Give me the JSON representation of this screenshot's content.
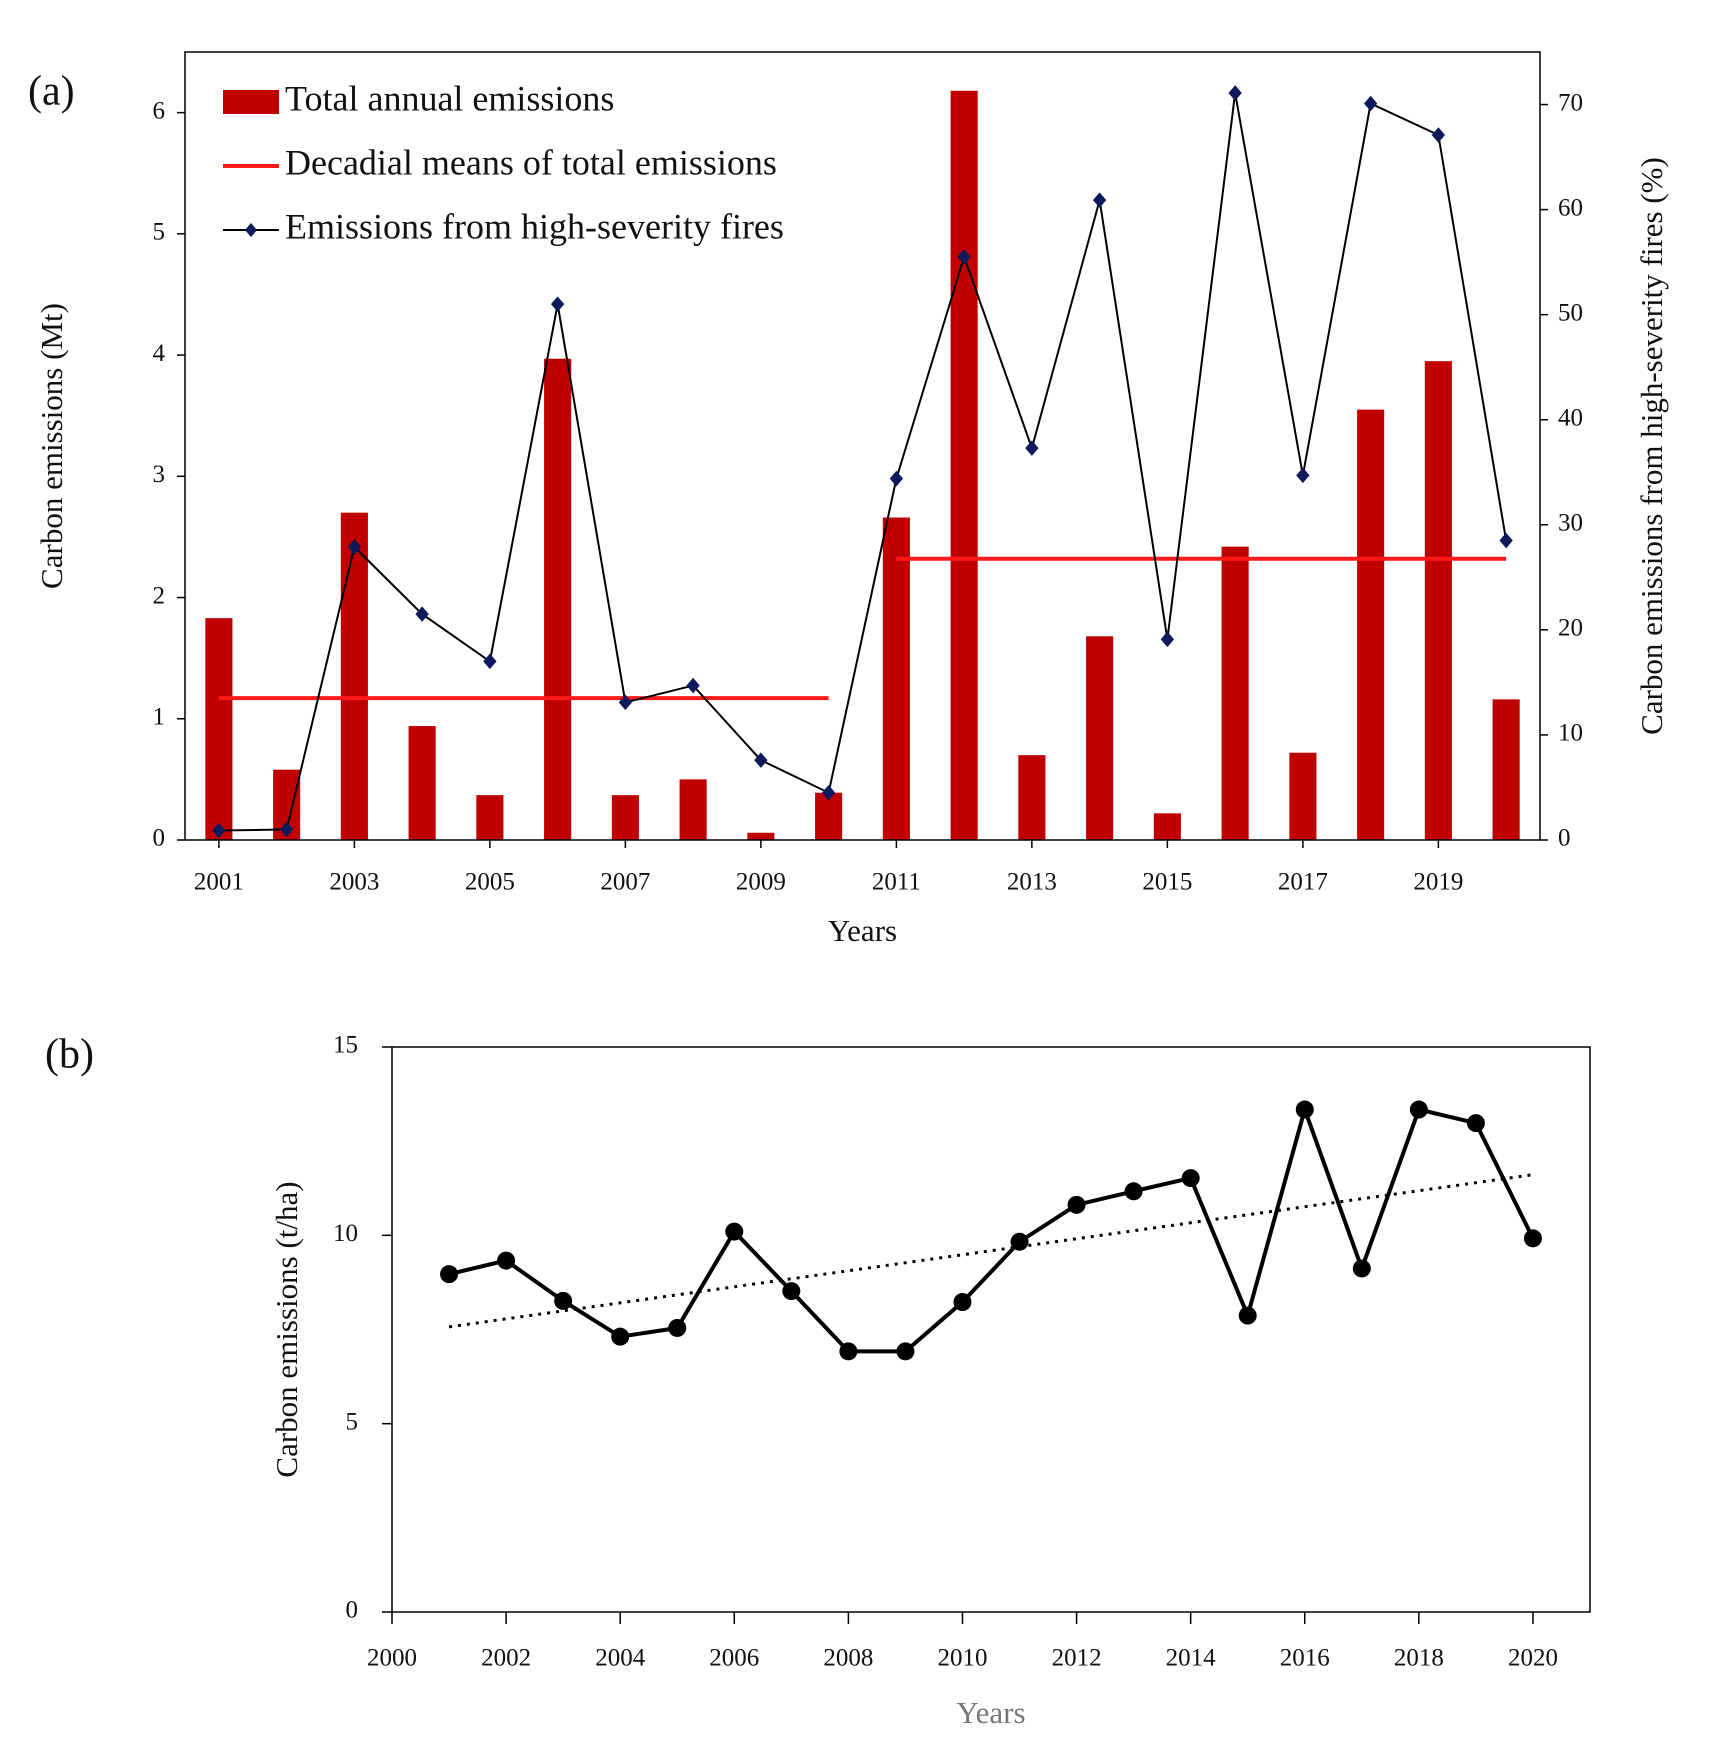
{
  "chart_data": [
    {
      "type": "bar",
      "panel": "(a)",
      "x_label": "Years",
      "y_label": "Carbon emissions (Mt)",
      "y2_label": "Carbon emissions from high-severity fires (%)",
      "x": [
        2001,
        2002,
        2003,
        2004,
        2005,
        2006,
        2007,
        2008,
        2009,
        2010,
        2011,
        2012,
        2013,
        2014,
        2015,
        2016,
        2017,
        2018,
        2019,
        2020
      ],
      "xlim": [
        2000.5,
        2020.5
      ],
      "xticks": [
        2001,
        2003,
        2005,
        2007,
        2009,
        2011,
        2013,
        2015,
        2017,
        2019
      ],
      "ylim": [
        0,
        6.5
      ],
      "yticks": [
        0,
        1,
        2,
        3,
        4,
        5,
        6
      ],
      "y2lim": [
        0,
        75
      ],
      "y2ticks": [
        0,
        10,
        20,
        30,
        40,
        50,
        60,
        70
      ],
      "legend": "upper left",
      "series": [
        {
          "name": "Total annual emissions",
          "type": "bar",
          "color": "#c00000",
          "values": [
            1.83,
            0.58,
            2.7,
            0.94,
            0.37,
            3.97,
            0.37,
            0.5,
            0.06,
            0.39,
            2.66,
            6.18,
            0.7,
            1.68,
            0.22,
            2.42,
            0.72,
            3.55,
            3.95,
            1.16
          ]
        },
        {
          "name": "Decadial means of total emissions",
          "type": "segments",
          "color": "#ff1a1a",
          "segments": [
            {
              "from": 2001,
              "to": 2010,
              "value": 1.17
            },
            {
              "from": 2011,
              "to": 2020,
              "value": 2.32
            }
          ]
        },
        {
          "name": "Emissions from high-severity fires",
          "type": "line",
          "axis": "y2",
          "color": "#000000",
          "marker_color": "#0d1a5c",
          "values": [
            0.9,
            1,
            27.9,
            21.5,
            17,
            51,
            13.1,
            14.7,
            7.6,
            4.5,
            34.4,
            55.5,
            37.3,
            60.9,
            19.1,
            71.1,
            34.7,
            70.1,
            67.1,
            28.5
          ]
        }
      ]
    },
    {
      "type": "line",
      "panel": "(b)",
      "x_label": "Years",
      "y_label": "Carbon emissions (t/ha)",
      "x": [
        2001,
        2002,
        2003,
        2004,
        2005,
        2006,
        2007,
        2008,
        2009,
        2010,
        2011,
        2012,
        2013,
        2014,
        2015,
        2016,
        2017,
        2018,
        2019,
        2020
      ],
      "values": [
        8.97,
        9.33,
        8.26,
        7.31,
        7.54,
        10.1,
        8.52,
        6.92,
        6.92,
        8.23,
        9.83,
        10.81,
        11.17,
        11.52,
        7.87,
        13.34,
        9.12,
        13.34,
        12.98,
        9.92
      ],
      "color": "#000000",
      "trend": {
        "x": [
          2001,
          2020
        ],
        "values": [
          7.57,
          11.61
        ]
      },
      "xlim": [
        2000,
        2021
      ],
      "xticks": [
        2000,
        2002,
        2004,
        2006,
        2008,
        2010,
        2012,
        2014,
        2016,
        2018,
        2020
      ],
      "ylim": [
        0,
        15
      ],
      "yticks": [
        0,
        5,
        10,
        15
      ]
    }
  ]
}
